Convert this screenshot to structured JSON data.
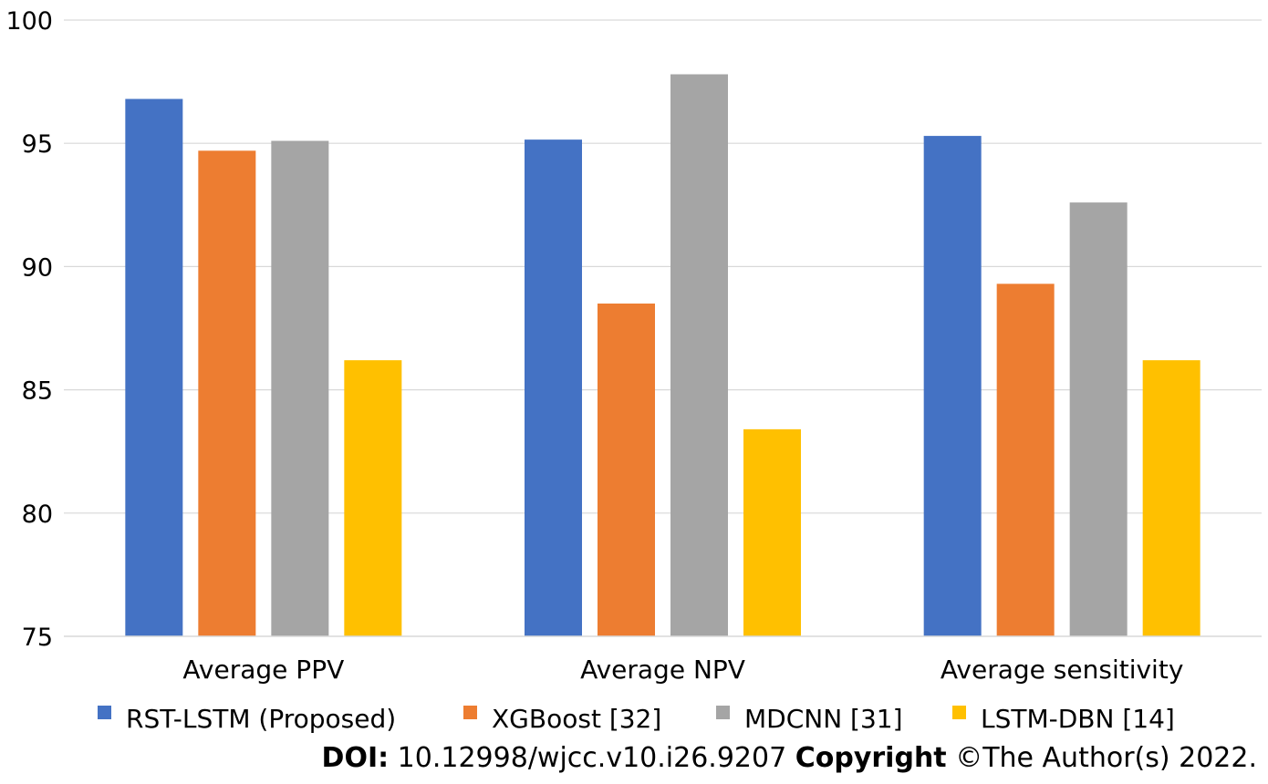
{
  "chart_data": {
    "type": "bar",
    "categories": [
      "Average PPV",
      "Average NPV",
      "Average sensitivity"
    ],
    "series": [
      {
        "name": "RST-LSTM (Proposed)",
        "color": "#4472C4",
        "values": [
          96.8,
          95.15,
          95.3
        ]
      },
      {
        "name": "XGBoost [32]",
        "color": "#ED7D31",
        "values": [
          94.7,
          88.5,
          89.3
        ]
      },
      {
        "name": "MDCNN [31]",
        "color": "#A5A5A5",
        "values": [
          95.1,
          97.8,
          92.6
        ]
      },
      {
        "name": "LSTM-DBN [14]",
        "color": "#FFC000",
        "values": [
          86.2,
          83.4,
          86.2
        ]
      }
    ],
    "ylim": [
      75,
      100
    ],
    "yticks": [
      75,
      80,
      85,
      90,
      95,
      100
    ],
    "grid": true,
    "legend_position": "bottom",
    "title": "",
    "xlabel": "",
    "ylabel": ""
  },
  "credit": {
    "doi_label": "DOI:",
    "doi_value": "10.12998/wjcc.v10.i26.9207",
    "copyright_label": "Copyright",
    "copyright_value": "©The Author(s) 2022."
  }
}
